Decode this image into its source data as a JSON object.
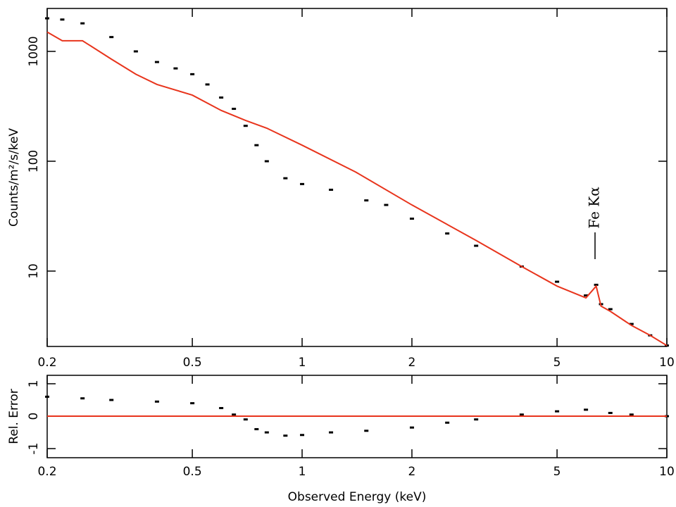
{
  "chart_data": [
    {
      "type": "line",
      "xscale": "log",
      "yscale": "log",
      "ylabel": "Counts/m²/s/keV",
      "annotation": "Fe Kα",
      "xlim": [
        0.2,
        10
      ],
      "xticks": [
        0.2,
        0.5,
        1,
        2,
        5,
        10
      ],
      "ylim": [
        2.06,
        2460
      ],
      "yticks": [
        10,
        100,
        1000
      ],
      "series": [
        {
          "style": "points",
          "color": "#000000",
          "x": [
            0.2,
            0.22,
            0.25,
            0.3,
            0.35,
            0.4,
            0.45,
            0.5,
            0.55,
            0.6,
            0.65,
            0.7,
            0.75,
            0.8,
            0.9,
            1.0,
            1.2,
            1.5,
            1.7,
            2.0,
            2.5,
            3.0,
            4.0,
            5.0,
            6.0,
            6.4,
            6.6,
            7.0,
            8.0,
            9.0,
            10.0
          ],
          "values": [
            2000,
            1950,
            1800,
            1350,
            1000,
            800,
            700,
            620,
            500,
            380,
            300,
            210,
            140,
            100,
            70,
            62,
            55,
            44,
            40,
            30,
            22,
            17,
            11,
            8,
            6,
            7.5,
            5,
            4.5,
            3.3,
            2.6,
            2.1
          ]
        },
        {
          "style": "line",
          "color": "#e8341c",
          "x": [
            0.2,
            0.22,
            0.25,
            0.3,
            0.35,
            0.4,
            0.5,
            0.6,
            0.7,
            0.8,
            1.0,
            1.4,
            2.0,
            3.0,
            4.0,
            5.0,
            6.0,
            6.4,
            6.6,
            7.0,
            8.0,
            9.0,
            10.0
          ],
          "values": [
            1500,
            1250,
            1250,
            850,
            620,
            500,
            400,
            290,
            235,
            200,
            140,
            80,
            40,
            19,
            11,
            7.3,
            5.7,
            7.3,
            4.8,
            4.3,
            3.2,
            2.6,
            2.1
          ]
        }
      ]
    },
    {
      "type": "line",
      "xscale": "log",
      "yscale": "linear",
      "ylabel": "Rel. Error",
      "xlabel": "Observed Energy (keV)",
      "xlim": [
        0.2,
        10
      ],
      "xticks": [
        0.2,
        0.5,
        1,
        2,
        5,
        10
      ],
      "ylim": [
        -1.28,
        1.26
      ],
      "yticks": [
        -1,
        0,
        1
      ],
      "series": [
        {
          "style": "points",
          "color": "#000000",
          "x": [
            0.2,
            0.25,
            0.3,
            0.4,
            0.5,
            0.6,
            0.65,
            0.7,
            0.75,
            0.8,
            0.9,
            1.0,
            1.2,
            1.5,
            2.0,
            2.5,
            3.0,
            4.0,
            5.0,
            6.0,
            7.0,
            8.0,
            10.0
          ],
          "values": [
            0.6,
            0.55,
            0.5,
            0.45,
            0.4,
            0.25,
            0.05,
            -0.1,
            -0.4,
            -0.5,
            -0.6,
            -0.58,
            -0.5,
            -0.45,
            -0.35,
            -0.2,
            -0.1,
            0.05,
            0.15,
            0.2,
            0.1,
            0.05,
            0.0
          ]
        },
        {
          "style": "line",
          "color": "#e8341c",
          "x": [
            0.2,
            10
          ],
          "values": [
            0,
            0
          ]
        }
      ]
    }
  ]
}
